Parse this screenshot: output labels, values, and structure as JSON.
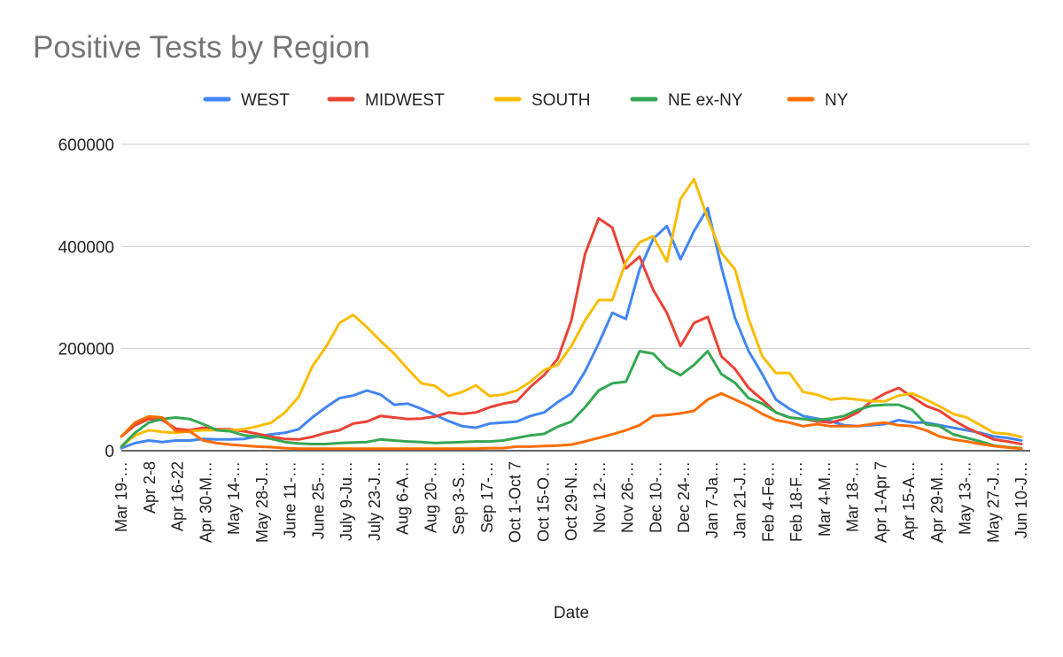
{
  "chart_data": {
    "type": "line",
    "title": "Positive Tests by Region",
    "xlabel": "Date",
    "ylabel": "",
    "ylim": [
      0,
      600000
    ],
    "y_ticks": [
      0,
      200000,
      400000,
      600000
    ],
    "y_tick_labels": [
      "0",
      "200000",
      "400000",
      "600000"
    ],
    "grid": true,
    "legend_position": "top",
    "x_tick_labels": [
      "Mar 19-…",
      "Apr 2-8",
      "Apr 16-22",
      "Apr 30-M…",
      "May 14-…",
      "May 28-J…",
      "June 11-…",
      "June 25-…",
      "July 9-Ju…",
      "July 23-J…",
      "Aug 6-A…",
      "Aug 20-…",
      "Sep 3-S…",
      "Sep 17-…",
      "Oct 1-Oct 7",
      "Oct 15-O…",
      "Oct 29-N…",
      "Nov 12-…",
      "Nov 26-…",
      "Dec 10-…",
      "Dec 24-…",
      "Jan 7-Ja…",
      "Jan 21-J…",
      "Feb 4-Fe…",
      "Feb 18-F…",
      "Mar 4-M…",
      "Mar 18-…",
      "Apr 1-Apr 7",
      "Apr 15-A…",
      "Apr 29-M…",
      "May 13-…",
      "May 27-J…",
      "Jun 10-J…"
    ],
    "series": [
      {
        "name": "WEST",
        "color": "#4285f4",
        "values": [
          5000,
          15000,
          20000,
          17000,
          20000,
          20000,
          23000,
          22000,
          22000,
          23000,
          28000,
          32000,
          35000,
          42000,
          65000,
          85000,
          103000,
          108000,
          118000,
          110000,
          90000,
          92000,
          82000,
          70000,
          58000,
          48000,
          45000,
          53000,
          55000,
          57000,
          68000,
          75000,
          95000,
          112000,
          155000,
          210000,
          270000,
          258000,
          355000,
          415000,
          440000,
          375000,
          430000,
          475000,
          360000,
          260000,
          195000,
          150000,
          100000,
          82000,
          68000,
          63000,
          58000,
          50000,
          48000,
          50000,
          52000,
          60000,
          55000,
          55000,
          50000,
          45000,
          40000,
          35000,
          28000,
          25000,
          20000
        ]
      },
      {
        "name": "MIDWEST",
        "color": "#ea4335",
        "values": [
          28000,
          50000,
          62000,
          60000,
          43000,
          40000,
          45000,
          42000,
          42000,
          38000,
          33000,
          27000,
          23000,
          22000,
          27000,
          35000,
          40000,
          53000,
          57000,
          68000,
          65000,
          62000,
          63000,
          67000,
          75000,
          72000,
          75000,
          85000,
          92000,
          97000,
          125000,
          148000,
          180000,
          255000,
          385000,
          455000,
          437000,
          357000,
          380000,
          315000,
          270000,
          205000,
          250000,
          262000,
          185000,
          160000,
          123000,
          100000,
          75000,
          65000,
          62000,
          58000,
          55000,
          62000,
          75000,
          97000,
          112000,
          123000,
          105000,
          88000,
          78000,
          60000,
          45000,
          33000,
          22000,
          18000,
          13000
        ]
      },
      {
        "name": "SOUTH",
        "color": "#fbbc04",
        "values": [
          8000,
          30000,
          40000,
          37000,
          35000,
          38000,
          40000,
          40000,
          40000,
          42000,
          48000,
          55000,
          75000,
          105000,
          165000,
          203000,
          250000,
          266000,
          242000,
          215000,
          190000,
          160000,
          132000,
          127000,
          107000,
          115000,
          128000,
          107000,
          110000,
          118000,
          135000,
          158000,
          168000,
          205000,
          255000,
          295000,
          295000,
          370000,
          408000,
          420000,
          370000,
          493000,
          532000,
          455000,
          388000,
          355000,
          258000,
          185000,
          152000,
          152000,
          115000,
          110000,
          100000,
          103000,
          100000,
          97000,
          97000,
          108000,
          112000,
          100000,
          87000,
          72000,
          65000,
          50000,
          35000,
          33000,
          27000
        ]
      },
      {
        "name": "NE ex-NY",
        "color": "#34a853",
        "values": [
          8000,
          35000,
          55000,
          62000,
          65000,
          62000,
          52000,
          40000,
          38000,
          30000,
          28000,
          23000,
          17000,
          14000,
          13000,
          13000,
          15000,
          16000,
          17000,
          22000,
          20000,
          18000,
          17000,
          15000,
          16000,
          17000,
          18000,
          18000,
          20000,
          25000,
          30000,
          33000,
          47000,
          57000,
          85000,
          118000,
          132000,
          135000,
          195000,
          190000,
          162000,
          148000,
          168000,
          195000,
          150000,
          133000,
          103000,
          92000,
          75000,
          65000,
          62000,
          60000,
          63000,
          68000,
          80000,
          88000,
          90000,
          90000,
          80000,
          52000,
          48000,
          32000,
          25000,
          18000,
          10000,
          7000,
          5000
        ]
      },
      {
        "name": "NY",
        "color": "#ff6d01",
        "values": [
          28000,
          55000,
          67000,
          65000,
          38000,
          38000,
          20000,
          15000,
          12000,
          10000,
          8000,
          7000,
          5000,
          4000,
          4000,
          4000,
          4000,
          4000,
          4000,
          4000,
          4000,
          4000,
          4000,
          4000,
          4000,
          4000,
          4000,
          5000,
          5000,
          8000,
          8000,
          9000,
          10000,
          12000,
          18000,
          25000,
          32000,
          40000,
          50000,
          68000,
          70000,
          73000,
          78000,
          100000,
          112000,
          100000,
          88000,
          72000,
          60000,
          55000,
          48000,
          52000,
          48000,
          48000,
          48000,
          52000,
          55000,
          50000,
          48000,
          40000,
          28000,
          22000,
          18000,
          13000,
          9000,
          6000,
          4000
        ]
      }
    ]
  }
}
